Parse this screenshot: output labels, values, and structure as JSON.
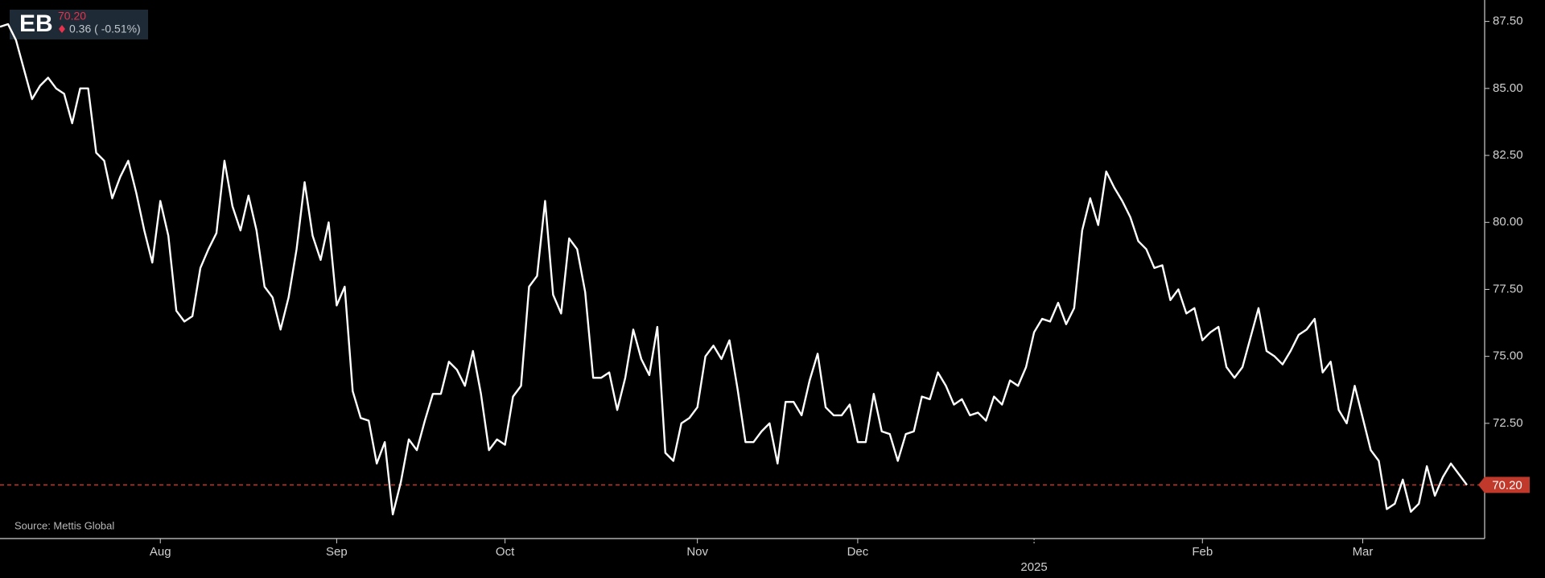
{
  "chart_data": {
    "type": "line",
    "symbol": "EB",
    "change": "0.36 ( -0.51%)",
    "source": "Source: Mettis Global",
    "color": "#ffffff",
    "reference_line": {
      "value": 70.2,
      "label": "70.20",
      "color": "#c0392b"
    },
    "ylim": [
      68.2,
      88.3
    ],
    "yticks": [
      {
        "value": 72.5,
        "label": "72.50"
      },
      {
        "value": 75,
        "label": "75.00"
      },
      {
        "value": 77.5,
        "label": "77.50"
      },
      {
        "value": 80,
        "label": "80.00"
      },
      {
        "value": 82.5,
        "label": "82.50"
      },
      {
        "value": 85,
        "label": "85.00"
      },
      {
        "value": 87.5,
        "label": "87.50"
      }
    ],
    "categories": [
      null,
      null,
      null,
      null,
      null,
      null,
      null,
      null,
      null,
      null,
      null,
      null,
      null,
      null,
      null,
      null,
      null,
      null,
      null,
      null,
      "Aug",
      null,
      null,
      null,
      null,
      null,
      null,
      null,
      null,
      null,
      null,
      null,
      null,
      null,
      null,
      null,
      null,
      null,
      null,
      null,
      null,
      null,
      "Sep",
      null,
      null,
      null,
      null,
      null,
      null,
      null,
      null,
      null,
      null,
      null,
      null,
      null,
      null,
      null,
      null,
      null,
      null,
      null,
      null,
      "Oct",
      null,
      null,
      null,
      null,
      null,
      null,
      null,
      null,
      null,
      null,
      null,
      null,
      null,
      null,
      null,
      null,
      null,
      null,
      null,
      null,
      null,
      null,
      null,
      "Nov",
      null,
      null,
      null,
      null,
      null,
      null,
      null,
      null,
      null,
      null,
      null,
      null,
      null,
      null,
      null,
      null,
      null,
      null,
      null,
      "Dec",
      null,
      null,
      null,
      null,
      null,
      null,
      null,
      null,
      null,
      null,
      null,
      null,
      null,
      null,
      null,
      null,
      null,
      null,
      null,
      null,
      null,
      "2025",
      null,
      null,
      null,
      null,
      null,
      null,
      null,
      null,
      null,
      null,
      null,
      null,
      null,
      null,
      null,
      null,
      null,
      null,
      null,
      null,
      "Feb",
      null,
      null,
      null,
      null,
      null,
      null,
      null,
      null,
      null,
      null,
      null,
      null,
      null,
      null,
      null,
      null,
      null,
      null,
      null,
      "Mar",
      null,
      null,
      null,
      null,
      null,
      null,
      null,
      null,
      null,
      null,
      null,
      null,
      null
    ],
    "values": [
      87.3,
      87.4,
      86.8,
      85.7,
      84.6,
      85.1,
      85.4,
      85.0,
      84.8,
      83.7,
      85.0,
      85.0,
      82.6,
      82.3,
      80.9,
      81.7,
      82.3,
      81.1,
      79.7,
      78.5,
      80.8,
      79.5,
      76.7,
      76.3,
      76.5,
      78.3,
      79.0,
      79.6,
      82.3,
      80.6,
      79.7,
      81.0,
      79.7,
      77.6,
      77.2,
      76.0,
      77.2,
      79.0,
      81.5,
      79.5,
      78.6,
      80.0,
      76.9,
      77.6,
      73.7,
      72.7,
      72.6,
      71.0,
      71.8,
      69.1,
      70.3,
      71.9,
      71.5,
      72.6,
      73.6,
      73.6,
      74.8,
      74.5,
      73.9,
      75.2,
      73.6,
      71.5,
      71.9,
      71.7,
      73.5,
      73.9,
      77.6,
      78.0,
      80.8,
      77.3,
      76.6,
      79.4,
      79.0,
      77.4,
      74.2,
      74.2,
      74.4,
      73.0,
      74.2,
      76.0,
      74.9,
      74.3,
      76.1,
      71.4,
      71.1,
      72.5,
      72.7,
      73.1,
      75.0,
      75.4,
      74.9,
      75.6,
      73.8,
      71.8,
      71.8,
      72.2,
      72.5,
      71.0,
      73.3,
      73.3,
      72.8,
      74.1,
      75.1,
      73.1,
      72.8,
      72.8,
      73.2,
      71.8,
      71.8,
      73.6,
      72.2,
      72.1,
      71.1,
      72.1,
      72.2,
      73.5,
      73.4,
      74.4,
      73.9,
      73.2,
      73.4,
      72.8,
      72.9,
      72.6,
      73.5,
      73.2,
      74.1,
      73.9,
      74.6,
      75.9,
      76.4,
      76.3,
      77.0,
      76.2,
      76.8,
      79.7,
      80.9,
      79.9,
      81.9,
      81.3,
      80.8,
      80.2,
      79.3,
      79.0,
      78.3,
      78.4,
      77.1,
      77.5,
      76.6,
      76.8,
      75.6,
      75.9,
      76.1,
      74.6,
      74.2,
      74.6,
      75.7,
      76.8,
      75.2,
      75.0,
      74.7,
      75.2,
      75.8,
      76.0,
      76.4,
      74.4,
      74.8,
      73.0,
      72.5,
      73.9,
      72.7,
      71.5,
      71.1,
      69.3,
      69.5,
      70.4,
      69.2,
      69.5,
      70.9,
      69.8,
      70.5,
      71.0,
      70.6,
      70.2
    ]
  }
}
